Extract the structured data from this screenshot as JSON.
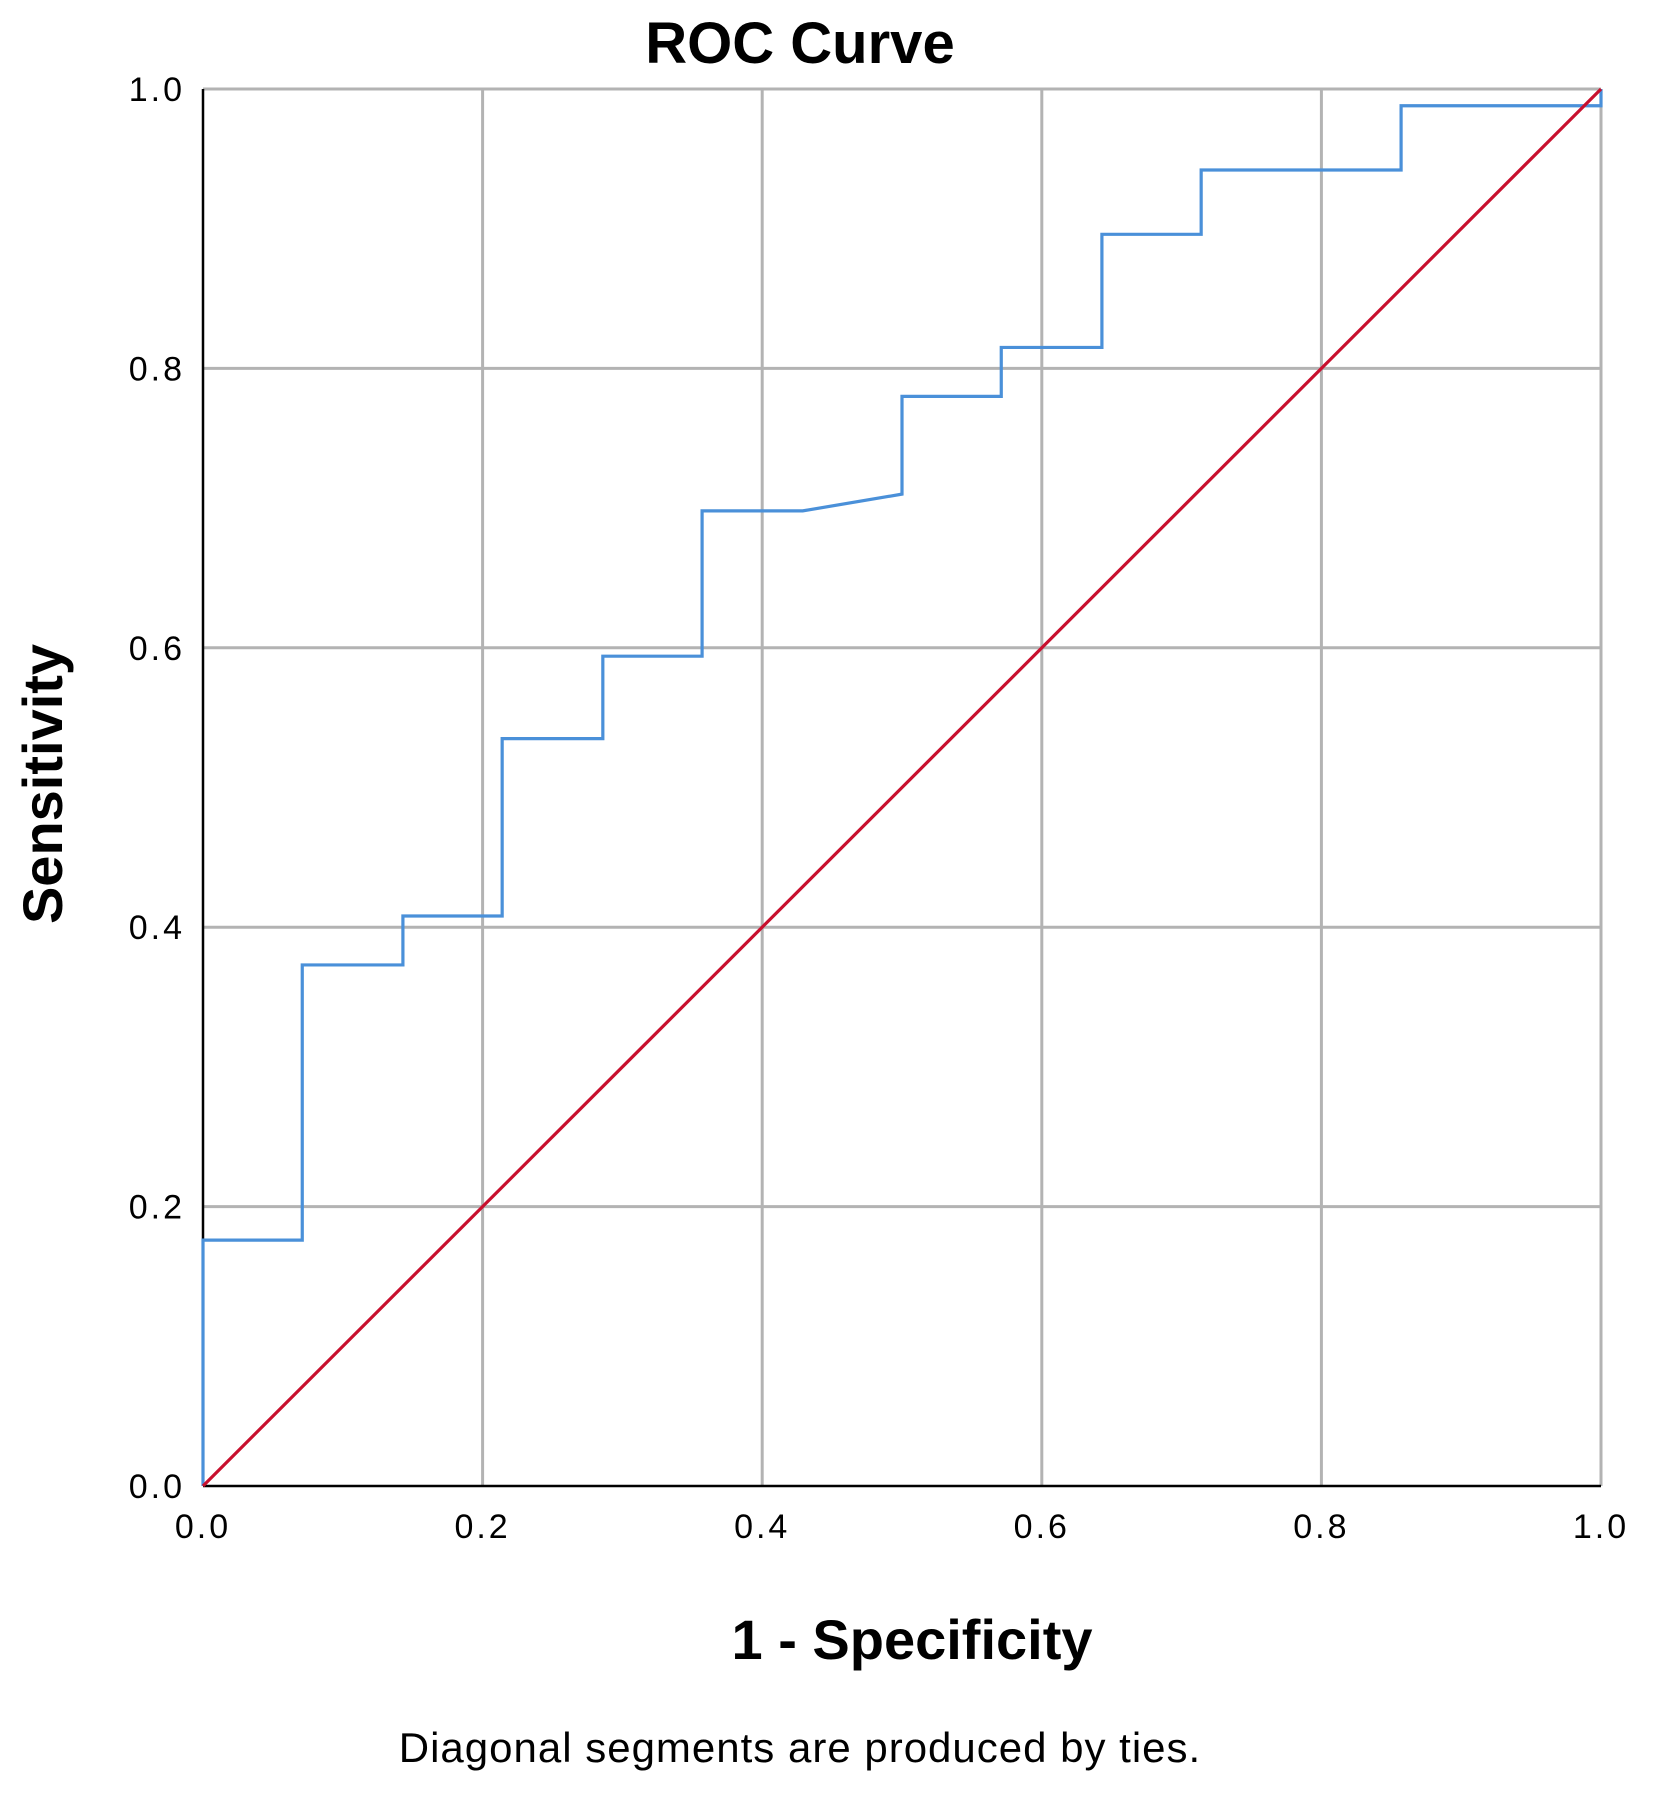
{
  "chart_data": {
    "type": "line",
    "title": "ROC Curve",
    "xlabel": "1 - Specificity",
    "ylabel": "Sensitivity",
    "footnote": "Diagonal segments are produced by ties.",
    "xlim": [
      0,
      1
    ],
    "ylim": [
      0,
      1
    ],
    "x_ticks": [
      "0.0",
      "0.2",
      "0.4",
      "0.6",
      "0.8",
      "1.0"
    ],
    "y_ticks": [
      "0.0",
      "0.2",
      "0.4",
      "0.6",
      "0.8",
      "1.0"
    ],
    "grid": true,
    "legend": "none",
    "series": [
      {
        "color": "#4a90d9",
        "points": [
          [
            0.0,
            0.0
          ],
          [
            0.0,
            0.176
          ],
          [
            0.071,
            0.176
          ],
          [
            0.071,
            0.373
          ],
          [
            0.143,
            0.373
          ],
          [
            0.143,
            0.408
          ],
          [
            0.214,
            0.408
          ],
          [
            0.214,
            0.535
          ],
          [
            0.286,
            0.535
          ],
          [
            0.286,
            0.594
          ],
          [
            0.357,
            0.594
          ],
          [
            0.357,
            0.698
          ],
          [
            0.429,
            0.698
          ],
          [
            0.5,
            0.71
          ],
          [
            0.5,
            0.78
          ],
          [
            0.571,
            0.78
          ],
          [
            0.571,
            0.815
          ],
          [
            0.643,
            0.815
          ],
          [
            0.643,
            0.896
          ],
          [
            0.714,
            0.896
          ],
          [
            0.714,
            0.942
          ],
          [
            0.857,
            0.942
          ],
          [
            0.857,
            0.988
          ],
          [
            1.0,
            0.988
          ],
          [
            1.0,
            1.0
          ]
        ]
      },
      {
        "color": "#c8102e",
        "points": [
          [
            0.0,
            0.0
          ],
          [
            1.0,
            1.0
          ]
        ]
      }
    ]
  }
}
